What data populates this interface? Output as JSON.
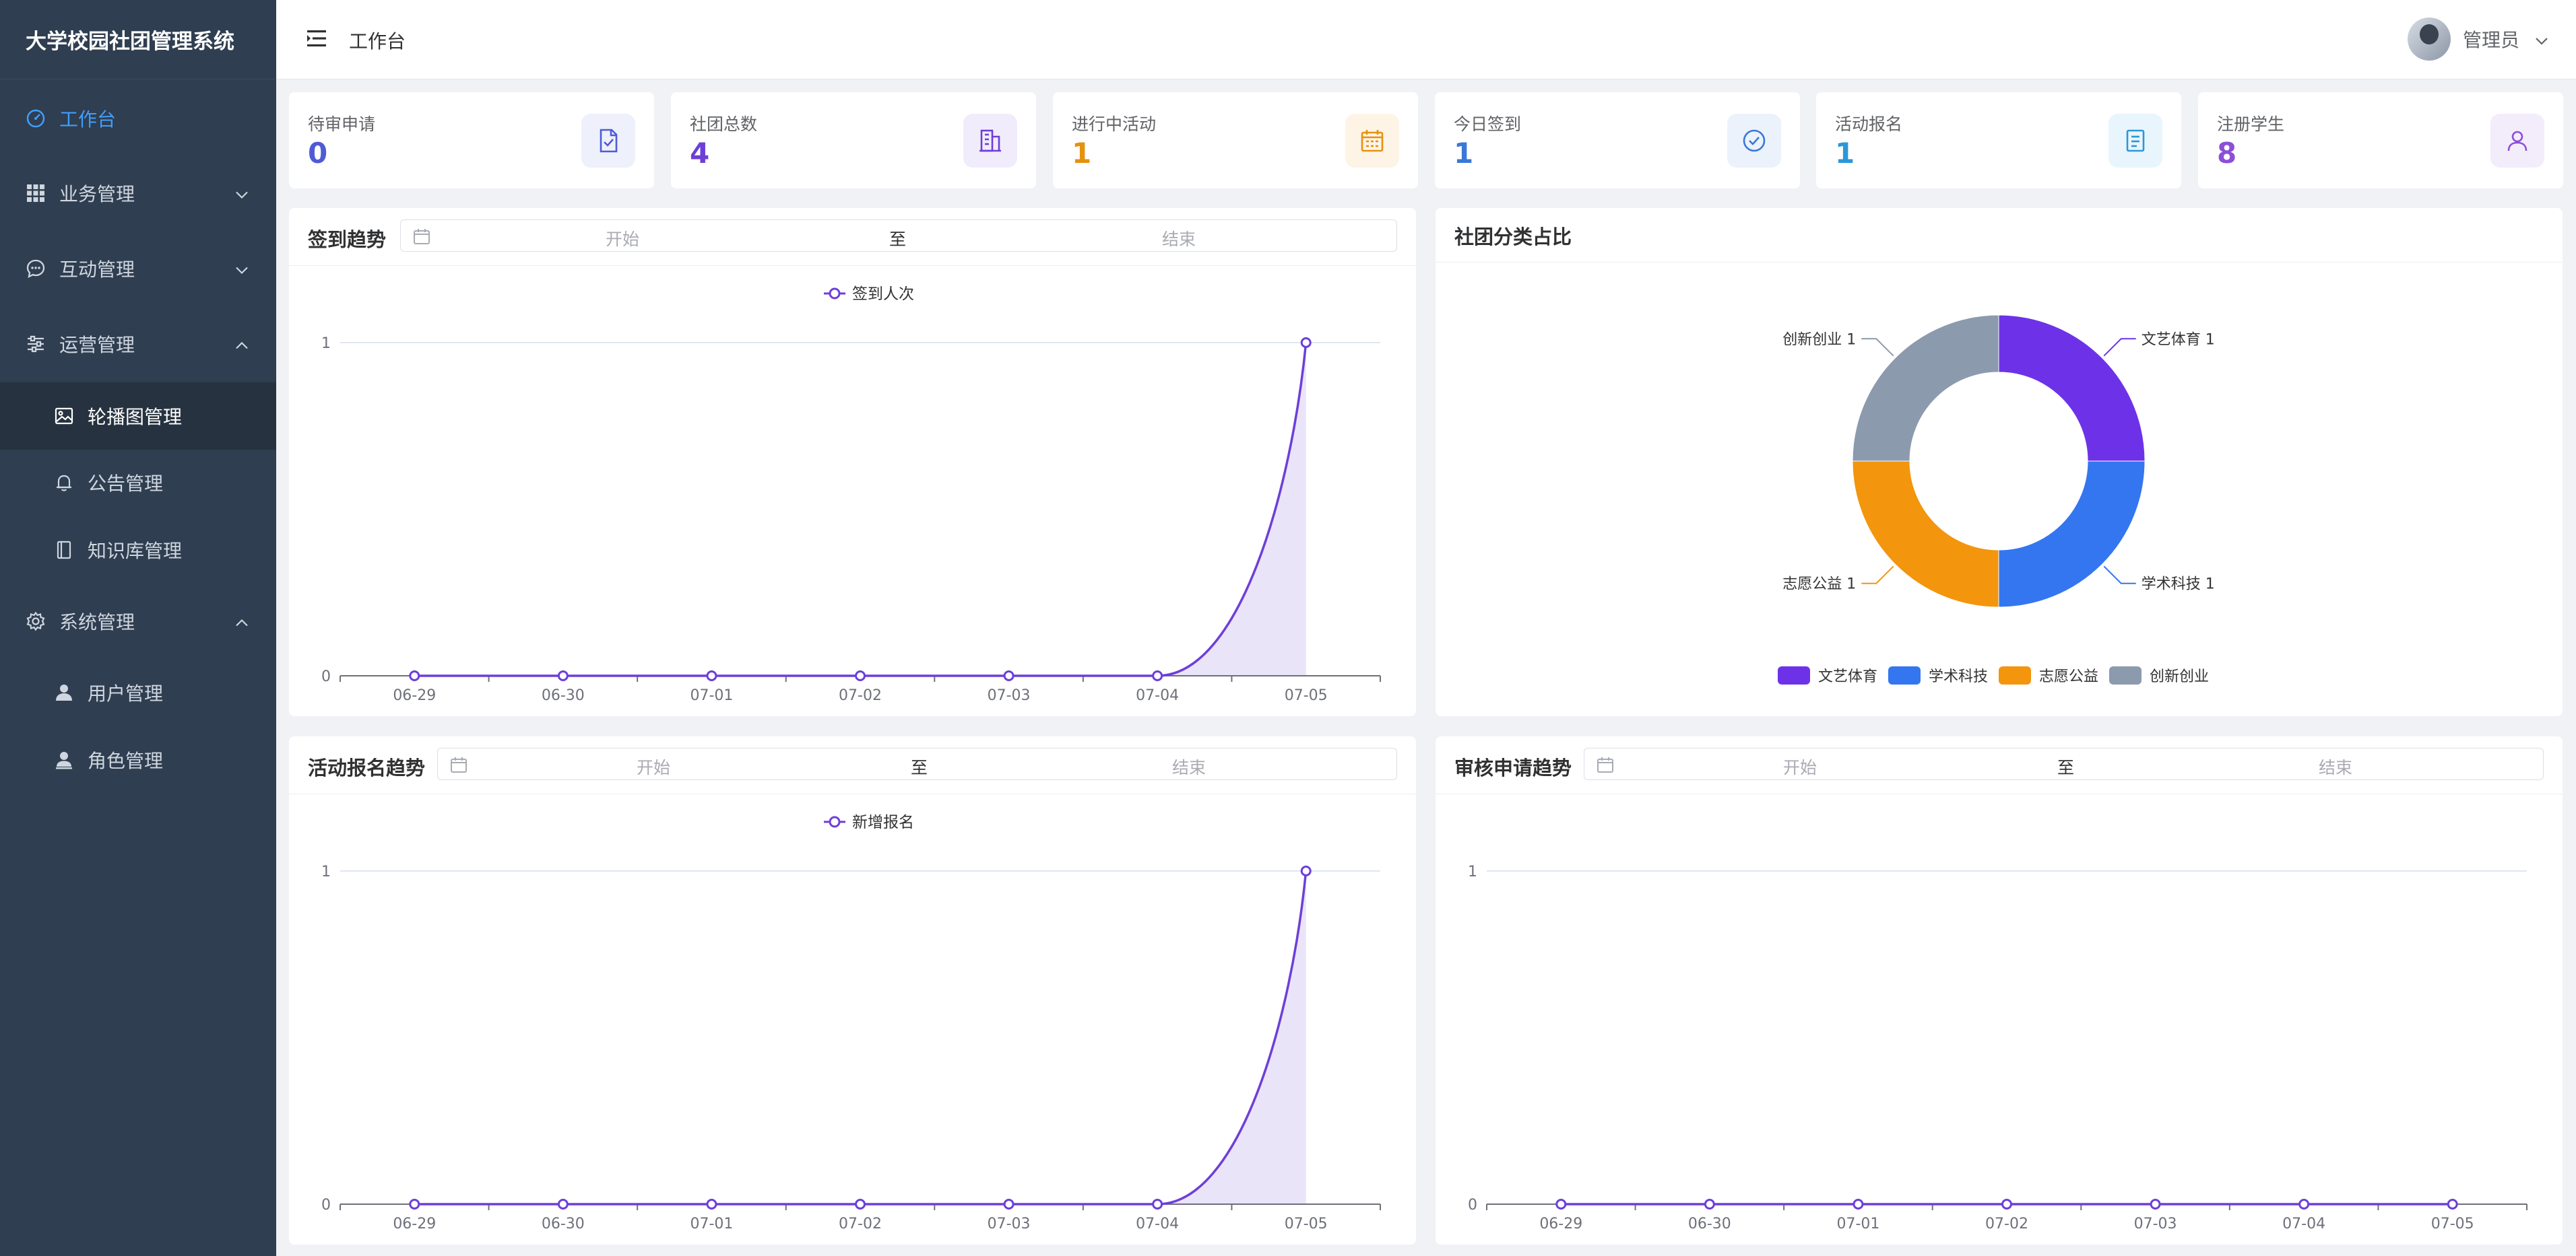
{
  "app": {
    "title": "大学校园社团管理系统"
  },
  "header": {
    "breadcrumb": "工作台",
    "user": "管理员"
  },
  "sidebar": {
    "items": [
      {
        "label": "工作台"
      },
      {
        "label": "业务管理"
      },
      {
        "label": "互动管理"
      },
      {
        "label": "运营管理"
      },
      {
        "label": "轮播图管理"
      },
      {
        "label": "公告管理"
      },
      {
        "label": "知识库管理"
      },
      {
        "label": "系统管理"
      },
      {
        "label": "用户管理"
      },
      {
        "label": "角色管理"
      }
    ]
  },
  "stats": [
    {
      "label": "待审申请",
      "value": "0",
      "color": "#4f5bd5",
      "bg": "#eef0fb"
    },
    {
      "label": "社团总数",
      "value": "4",
      "color": "#6d3fd8",
      "bg": "#f1ecfb"
    },
    {
      "label": "进行中活动",
      "value": "1",
      "color": "#e6910f",
      "bg": "#fdf4e6"
    },
    {
      "label": "今日签到",
      "value": "1",
      "color": "#3a78d8",
      "bg": "#ebf2fb"
    },
    {
      "label": "活动报名",
      "value": "1",
      "color": "#2b97d8",
      "bg": "#e8f5fc"
    },
    {
      "label": "注册学生",
      "value": "8",
      "color": "#8b4fd8",
      "bg": "#f3ecfb"
    }
  ],
  "daterange": {
    "start": "开始",
    "to": "至",
    "end": "结束"
  },
  "panels": {
    "checkin": {
      "title": "签到趋势"
    },
    "category": {
      "title": "社团分类占比"
    },
    "signup": {
      "title": "活动报名趋势"
    },
    "audit": {
      "title": "审核申请趋势"
    }
  },
  "chart_data": [
    {
      "type": "area",
      "title": "签到趋势",
      "categories": [
        "06-29",
        "06-30",
        "07-01",
        "07-02",
        "07-03",
        "07-04",
        "07-05"
      ],
      "series": [
        {
          "name": "签到人次",
          "values": [
            0,
            0,
            0,
            0,
            0,
            0,
            1
          ]
        }
      ],
      "ylim": [
        0,
        1
      ],
      "yticks": [
        "0",
        "1"
      ],
      "legend": "top-center",
      "color": "#6d3fd8"
    },
    {
      "type": "pie",
      "title": "社团分类占比",
      "labels": [
        "文艺体育",
        "学术科技",
        "志愿公益",
        "创新创业"
      ],
      "values": [
        1,
        1,
        1,
        1
      ],
      "colors": [
        "#6d32e8",
        "#3476f0",
        "#f3950d",
        "#8c9aae"
      ],
      "legend": "bottom-center"
    },
    {
      "type": "area",
      "title": "活动报名趋势",
      "categories": [
        "06-29",
        "06-30",
        "07-01",
        "07-02",
        "07-03",
        "07-04",
        "07-05"
      ],
      "series": [
        {
          "name": "新增报名",
          "values": [
            0,
            0,
            0,
            0,
            0,
            0,
            1
          ]
        }
      ],
      "ylim": [
        0,
        1
      ],
      "yticks": [
        "0",
        "1"
      ],
      "legend": "top-center",
      "color": "#6d3fd8"
    },
    {
      "type": "line",
      "title": "审核申请趋势",
      "categories": [
        "06-29",
        "06-30",
        "07-01",
        "07-02",
        "07-03",
        "07-04",
        "07-05"
      ],
      "series": [
        {
          "values": [
            0,
            0,
            0,
            0,
            0,
            0,
            0
          ]
        }
      ],
      "ylim": [
        0,
        1
      ],
      "yticks": [
        "0",
        "1"
      ],
      "color": "#6d3fd8"
    }
  ]
}
